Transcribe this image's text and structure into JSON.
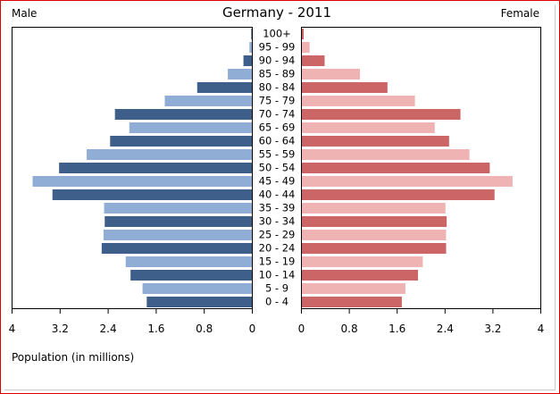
{
  "chart_data": {
    "type": "bar",
    "title": "Germany - 2011",
    "left_label": "Male",
    "right_label": "Female",
    "xlabel": "Population (in millions)",
    "categories": [
      "0 - 4",
      "5 - 9",
      "10 - 14",
      "15 - 19",
      "20 - 24",
      "25 - 29",
      "30 - 34",
      "35 - 39",
      "40 - 44",
      "45 - 49",
      "50 - 54",
      "55 - 59",
      "60 - 64",
      "65 - 69",
      "70 - 74",
      "75 - 79",
      "80 - 84",
      "85 - 89",
      "90 - 94",
      "95 - 99",
      "100+"
    ],
    "series": [
      {
        "name": "Male",
        "values": [
          1.75,
          1.82,
          2.02,
          2.1,
          2.5,
          2.47,
          2.45,
          2.46,
          3.32,
          3.65,
          3.21,
          2.75,
          2.36,
          2.04,
          2.28,
          1.45,
          0.91,
          0.4,
          0.14,
          0.04,
          0.01
        ],
        "ticks": [
          "4",
          "3.2",
          "2.4",
          "1.6",
          "0.8",
          "0"
        ],
        "xlim": [
          0,
          4
        ]
      },
      {
        "name": "Female",
        "values": [
          1.67,
          1.73,
          1.94,
          2.02,
          2.41,
          2.41,
          2.42,
          2.4,
          3.22,
          3.52,
          3.14,
          2.8,
          2.46,
          2.22,
          2.65,
          1.89,
          1.43,
          0.97,
          0.38,
          0.13,
          0.03
        ],
        "ticks": [
          "0",
          "0.8",
          "1.6",
          "2.4",
          "3.2",
          "4"
        ],
        "xlim": [
          0,
          4
        ]
      }
    ],
    "colors": {
      "male_dark": "#3e5f8a",
      "male_light": "#8fadd5",
      "female_dark": "#cc6666",
      "female_light": "#f0b3b3",
      "frame": "#e00000"
    }
  }
}
